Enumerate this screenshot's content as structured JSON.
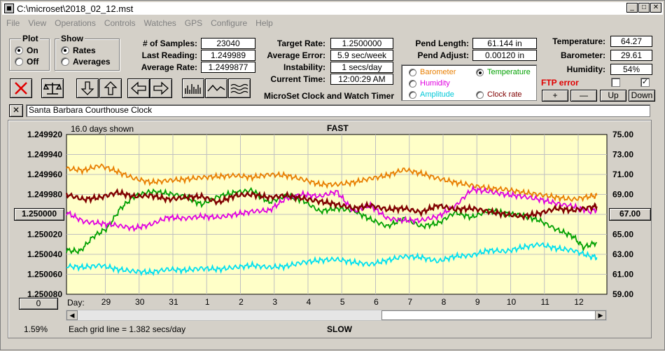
{
  "window": {
    "title": "C:\\microset\\2018_02_12.mst"
  },
  "menu": [
    "File",
    "View",
    "Operations",
    "Controls",
    "Watches",
    "GPS",
    "Configure",
    "Help"
  ],
  "plot": {
    "title": "Plot",
    "on": "On",
    "off": "Off"
  },
  "show": {
    "title": "Show",
    "rates": "Rates",
    "averages": "Averages"
  },
  "stats": {
    "samples_label": "# of Samples:",
    "samples": "23040",
    "last_label": "Last Reading:",
    "last": "1.249989",
    "avg_rate_label": "Average Rate:",
    "avg_rate": "1.2499877",
    "target_label": "Target Rate:",
    "target": "1.2500000",
    "avg_err_label": "Average Error:",
    "avg_err": "5.9 sec/week",
    "instab_label": "Instability:",
    "instab": "1 secs/day",
    "time_label": "Current Time:",
    "time": "12:00:29 AM",
    "pend_len_label": "Pend Length:",
    "pend_len": "61.144 in",
    "pend_adj_label": "Pend Adjust:",
    "pend_adj": "0.00120 in",
    "temp_label": "Temperature:",
    "temp": "64.27",
    "baro_label": "Barometer:",
    "baro": "29.61",
    "hum_label": "Humidity:",
    "hum": "54%"
  },
  "app_name": "MicroSet Clock and Watch Timer",
  "options": {
    "barometer": "Barometer",
    "temperature": "Temperature",
    "humidity": "Humidity",
    "amplitude": "Amplitude",
    "clock_rate": "Clock rate",
    "colors": {
      "barometer": "#e87e00",
      "temperature": "#00a000",
      "humidity": "#e000e0",
      "amplitude": "#00d0e0",
      "clock_rate": "#800000"
    }
  },
  "ftp": {
    "label": "FTP error"
  },
  "adjust_buttons": {
    "plus": "+",
    "minus": "—",
    "up": "Up",
    "down": "Down"
  },
  "description": "Santa Barbara Courthouse Clock",
  "chart_header": {
    "days_shown": "16.0 days shown",
    "fast": "FAST",
    "slow": "SLOW",
    "grid": "Each grid line = 1.382 secs/day",
    "percent": "1.59%",
    "day_label": "Day:"
  },
  "left_buttons": {
    "center": "1.250000",
    "zero": "0"
  },
  "right_button": "67.00",
  "chart_data": {
    "type": "line",
    "background": "#ffffc8",
    "y_left_ticks": [
      "1.249920",
      "1.249940",
      "1.249960",
      "1.249980",
      "1.250000",
      "1.250020",
      "1.250040",
      "1.250060",
      "1.250080"
    ],
    "y_left_range": [
      1.24992,
      1.25008
    ],
    "y_right_ticks": [
      "75.00",
      "73.00",
      "71.00",
      "69.00",
      "67.00",
      "65.00",
      "63.00",
      "61.00",
      "59.00"
    ],
    "y_right_range": [
      59,
      75
    ],
    "x_day_ticks": [
      "29",
      "30",
      "31",
      "1",
      "2",
      "3",
      "4",
      "5",
      "6",
      "7",
      "8",
      "9",
      "10",
      "11",
      "12"
    ],
    "x_range": [
      0,
      16
    ],
    "series": [
      {
        "color": "#e87e00",
        "axis": "right",
        "values": [
          [
            0,
            71.6
          ],
          [
            0.5,
            71.4
          ],
          [
            1,
            71.9
          ],
          [
            1.5,
            71.3
          ],
          [
            2,
            70.6
          ],
          [
            2.5,
            70.2
          ],
          [
            3,
            70.4
          ],
          [
            3.5,
            70.5
          ],
          [
            4,
            70.7
          ],
          [
            4.5,
            70.8
          ],
          [
            5,
            70.9
          ],
          [
            5.5,
            70.7
          ],
          [
            6,
            71.0
          ],
          [
            6.5,
            70.9
          ],
          [
            7,
            70.5
          ],
          [
            7.5,
            70.0
          ],
          [
            8,
            70.0
          ],
          [
            8.5,
            70.2
          ],
          [
            9,
            70.6
          ],
          [
            9.5,
            70.9
          ],
          [
            10,
            71.5
          ],
          [
            10.5,
            71.1
          ],
          [
            11,
            70.6
          ],
          [
            11.5,
            70.2
          ],
          [
            12,
            69.9
          ],
          [
            12.5,
            69.6
          ],
          [
            13,
            69.5
          ],
          [
            13.5,
            69.2
          ],
          [
            14,
            69.0
          ],
          [
            14.5,
            68.7
          ],
          [
            15,
            68.5
          ],
          [
            15.5,
            68.8
          ],
          [
            15.7,
            68.9
          ]
        ]
      },
      {
        "color": "#00a000",
        "axis": "right",
        "values": [
          [
            0,
            63.4
          ],
          [
            0.4,
            63.3
          ],
          [
            0.8,
            64.8
          ],
          [
            1.2,
            65.6
          ],
          [
            1.6,
            67.6
          ],
          [
            2,
            68.8
          ],
          [
            2.5,
            69.3
          ],
          [
            3,
            69.1
          ],
          [
            3.5,
            68.8
          ],
          [
            4,
            68.0
          ],
          [
            4.5,
            68.8
          ],
          [
            5,
            69.2
          ],
          [
            5.5,
            69.4
          ],
          [
            6,
            68.2
          ],
          [
            6.5,
            68.9
          ],
          [
            7,
            68.4
          ],
          [
            7.5,
            67.3
          ],
          [
            8,
            67.6
          ],
          [
            8.5,
            67.4
          ],
          [
            9,
            66.5
          ],
          [
            9.5,
            65.8
          ],
          [
            10,
            66.6
          ],
          [
            10.5,
            65.8
          ],
          [
            11,
            66.1
          ],
          [
            11.5,
            67.2
          ],
          [
            12,
            66.7
          ],
          [
            12.5,
            67.4
          ],
          [
            13,
            67.1
          ],
          [
            13.5,
            66.9
          ],
          [
            14,
            66.4
          ],
          [
            14.5,
            65.5
          ],
          [
            15,
            64.8
          ],
          [
            15.3,
            63.7
          ],
          [
            15.7,
            64.2
          ]
        ]
      },
      {
        "color": "#e000e0",
        "axis": "right",
        "values": [
          [
            0,
            67.2
          ],
          [
            0.5,
            66.3
          ],
          [
            1,
            66.1
          ],
          [
            1.5,
            65.9
          ],
          [
            2,
            65.6
          ],
          [
            2.5,
            66.0
          ],
          [
            3,
            66.7
          ],
          [
            3.5,
            66.6
          ],
          [
            4,
            66.8
          ],
          [
            4.5,
            66.7
          ],
          [
            5,
            67.0
          ],
          [
            5.5,
            67.3
          ],
          [
            6,
            67.4
          ],
          [
            6.5,
            68.6
          ],
          [
            7,
            69.0
          ],
          [
            7.5,
            68.8
          ],
          [
            8,
            69.3
          ],
          [
            8.5,
            67.3
          ],
          [
            9,
            67.9
          ],
          [
            9.5,
            66.6
          ],
          [
            10,
            66.4
          ],
          [
            10.5,
            66.4
          ],
          [
            11,
            66.8
          ],
          [
            11.5,
            67.8
          ],
          [
            12,
            69.5
          ],
          [
            12.5,
            69.3
          ],
          [
            13,
            69.0
          ],
          [
            13.5,
            68.8
          ],
          [
            14,
            68.5
          ],
          [
            14.5,
            68.1
          ],
          [
            15,
            67.8
          ],
          [
            15.5,
            67.3
          ],
          [
            15.7,
            67.5
          ]
        ]
      },
      {
        "color": "#00e0f0",
        "axis": "right",
        "values": [
          [
            0,
            61.8
          ],
          [
            0.5,
            61.7
          ],
          [
            1,
            61.9
          ],
          [
            1.5,
            61.5
          ],
          [
            2,
            61.3
          ],
          [
            2.5,
            61.2
          ],
          [
            3,
            61.5
          ],
          [
            3.5,
            61.4
          ],
          [
            4,
            61.6
          ],
          [
            4.5,
            61.5
          ],
          [
            5,
            61.7
          ],
          [
            5.5,
            61.9
          ],
          [
            6,
            61.7
          ],
          [
            6.5,
            61.8
          ],
          [
            7,
            62.2
          ],
          [
            7.5,
            62.4
          ],
          [
            8,
            62.5
          ],
          [
            8.5,
            62.2
          ],
          [
            9,
            62.0
          ],
          [
            9.5,
            62.4
          ],
          [
            10,
            62.8
          ],
          [
            10.5,
            62.7
          ],
          [
            11,
            62.3
          ],
          [
            11.5,
            62.8
          ],
          [
            12,
            62.9
          ],
          [
            12.5,
            63.4
          ],
          [
            13,
            63.3
          ],
          [
            13.5,
            63.7
          ],
          [
            14,
            64.0
          ],
          [
            14.5,
            63.6
          ],
          [
            15,
            63.4
          ],
          [
            15.5,
            62.8
          ],
          [
            15.7,
            62.7
          ]
        ]
      },
      {
        "color": "#800000",
        "axis": "right",
        "values": [
          [
            0,
            69.0
          ],
          [
            0.5,
            68.5
          ],
          [
            1,
            68.7
          ],
          [
            1.5,
            69.2
          ],
          [
            2,
            68.8
          ],
          [
            2.5,
            68.9
          ],
          [
            3,
            68.5
          ],
          [
            3.5,
            68.7
          ],
          [
            4,
            68.8
          ],
          [
            4.5,
            68.2
          ],
          [
            5,
            68.9
          ],
          [
            5.5,
            69.0
          ],
          [
            6,
            68.7
          ],
          [
            6.5,
            68.9
          ],
          [
            7,
            68.6
          ],
          [
            7.5,
            68.3
          ],
          [
            8,
            68.0
          ],
          [
            8.5,
            67.6
          ],
          [
            9,
            67.9
          ],
          [
            9.5,
            67.5
          ],
          [
            10,
            67.6
          ],
          [
            10.5,
            67.2
          ],
          [
            11,
            67.9
          ],
          [
            11.5,
            67.5
          ],
          [
            12,
            67.6
          ],
          [
            12.5,
            67.3
          ],
          [
            13,
            67.0
          ],
          [
            13.5,
            66.8
          ],
          [
            14,
            67.1
          ],
          [
            14.5,
            67.6
          ],
          [
            15,
            67.4
          ],
          [
            15.5,
            67.7
          ],
          [
            15.7,
            67.8
          ]
        ]
      }
    ]
  }
}
